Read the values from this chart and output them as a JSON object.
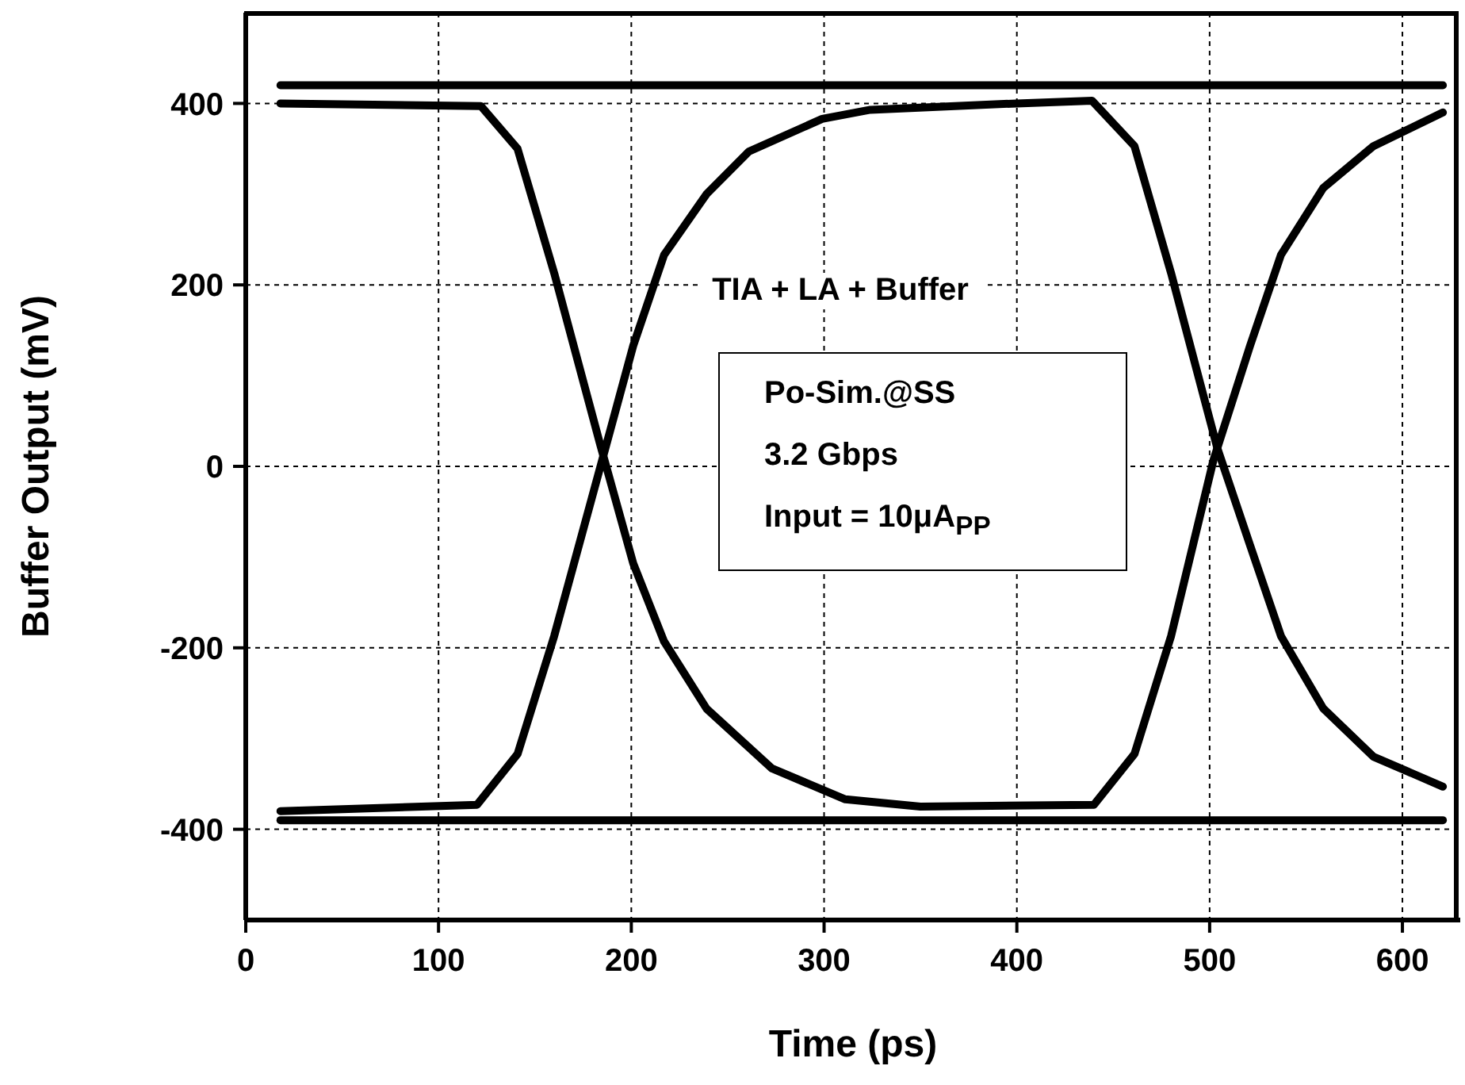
{
  "chart_data": {
    "type": "line",
    "xlabel": "Time (ps)",
    "ylabel": "Buffer Output (mV)",
    "annotations": [
      "TIA + LA + Buffer",
      "Po-Sim.@SS",
      "3.2 Gbps",
      "Input = 10μA$_{PP}$"
    ],
    "xlim": [
      0,
      630
    ],
    "xticks": [
      0,
      100,
      200,
      300,
      400,
      500,
      600
    ],
    "ylim": [
      -500,
      500
    ],
    "yticks": [
      -400,
      -200,
      0,
      200,
      400
    ],
    "grid": true,
    "marker": "none",
    "line_style": "solid",
    "series": [
      {
        "color": "#000000",
        "x": [
          18,
          621
        ],
        "values": [
          420,
          420
        ]
      },
      {
        "color": "#000000",
        "x": [
          18,
          621
        ],
        "values": [
          -390,
          -390
        ]
      },
      {
        "color": "#000000",
        "x": [
          18,
          122,
          141,
          160,
          184,
          201,
          217,
          239,
          273,
          311,
          350,
          440,
          461,
          480,
          502,
          521,
          537,
          559,
          585,
          621
        ],
        "values": [
          400,
          397,
          350,
          213,
          23,
          -107,
          -193,
          -267,
          -333,
          -367,
          -375,
          -373,
          -317,
          -187,
          7,
          133,
          233,
          307,
          353,
          390
        ]
      },
      {
        "color": "#000000",
        "x": [
          18,
          120,
          141,
          160,
          184,
          201,
          217,
          239,
          261,
          299,
          324,
          400,
          439,
          461,
          480,
          504,
          521,
          537,
          559,
          585,
          621
        ],
        "values": [
          -380,
          -373,
          -317,
          -187,
          0,
          133,
          233,
          300,
          347,
          383,
          393,
          400,
          403,
          353,
          213,
          20,
          -87,
          -187,
          -267,
          -320,
          -353
        ]
      }
    ]
  }
}
